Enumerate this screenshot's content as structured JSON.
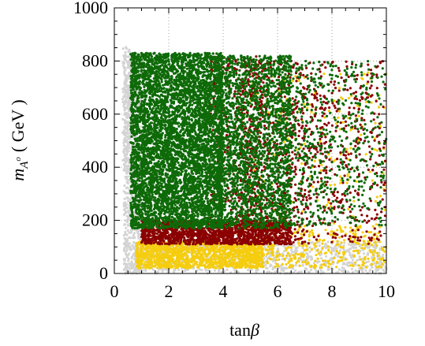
{
  "chart_data": {
    "type": "scatter",
    "xlabel": {
      "base": "tan",
      "symbol": "β"
    },
    "ylabel": {
      "base": "m",
      "sub_main": "A",
      "sub_sup": "o",
      "unit": "( GeV )"
    },
    "xlim": [
      0,
      10
    ],
    "ylim": [
      0,
      1000
    ],
    "x_ticks": [
      0,
      2,
      4,
      6,
      8,
      10
    ],
    "y_ticks": [
      0,
      200,
      400,
      600,
      800,
      1000
    ],
    "x_tick_labels": [
      "0",
      "2",
      "4",
      "6",
      "8",
      "10"
    ],
    "y_tick_labels": [
      "0",
      "200",
      "400",
      "600",
      "800",
      "1000"
    ],
    "grid": "dotted",
    "legend": "none",
    "series": [
      {
        "color": "#d4d4d4",
        "values_description": "densest along tanβ≈0.4–1.0 for all mA, and a sparse band at low mA (0–120 GeV) spanning tanβ 1–10",
        "regions": [
          {
            "x": [
              0.35,
              1.0
            ],
            "y": [
              0,
              820
            ],
            "n": 900
          },
          {
            "x": [
              1.0,
              10
            ],
            "y": [
              0,
              120
            ],
            "n": 900
          },
          {
            "x": [
              0.3,
              0.6
            ],
            "y": [
              380,
              860
            ],
            "n": 90
          }
        ]
      },
      {
        "color": "#f5cd0f",
        "regions": [
          {
            "x": [
              0.8,
              5.5
            ],
            "y": [
              20,
              120
            ],
            "n": 1400
          },
          {
            "x": [
              4.5,
              10
            ],
            "y": [
              20,
              180
            ],
            "n": 380
          },
          {
            "x": [
              5,
              10
            ],
            "y": [
              150,
              760
            ],
            "n": 210
          }
        ]
      },
      {
        "color": "#8b0000",
        "regions": [
          {
            "x": [
              1.0,
              6.5
            ],
            "y": [
              110,
              200
            ],
            "n": 1700
          },
          {
            "x": [
              4.5,
              10
            ],
            "y": [
              110,
              800
            ],
            "n": 1500
          },
          {
            "x": [
              3.5,
              5.5
            ],
            "y": [
              200,
              820
            ],
            "n": 380
          }
        ]
      },
      {
        "color": "#0e6a08",
        "regions": [
          {
            "x": [
              0.6,
              4.0
            ],
            "y": [
              170,
              830
            ],
            "n": 9000
          },
          {
            "x": [
              3.8,
              6.5
            ],
            "y": [
              170,
              820
            ],
            "n": 2300
          },
          {
            "x": [
              6.0,
              10
            ],
            "y": [
              180,
              800
            ],
            "n": 1100
          }
        ]
      }
    ]
  }
}
